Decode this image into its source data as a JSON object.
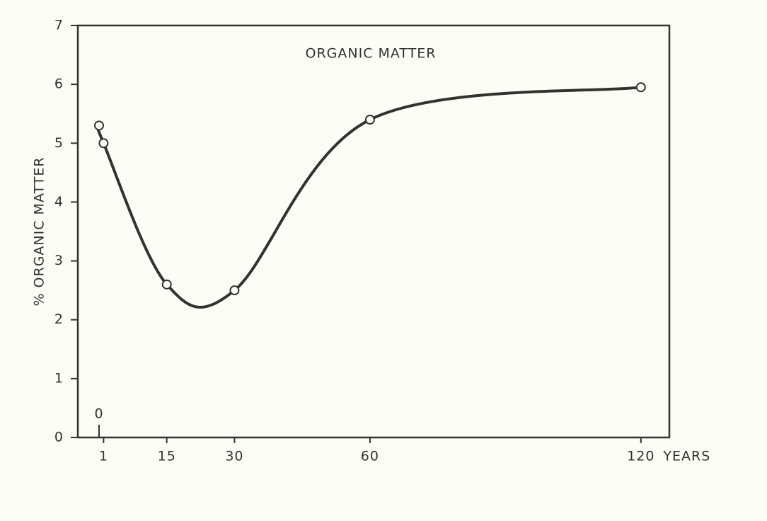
{
  "chart_data": {
    "type": "line",
    "title": "ORGANIC MATTER",
    "ylabel": "% ORGANIC MATTER",
    "xlabel": "YEARS",
    "x": [
      0,
      1,
      15,
      30,
      60,
      120
    ],
    "series": [
      {
        "name": "% ORGANIC MATTER",
        "color": "#2f352c",
        "values": [
          5.3,
          5.0,
          2.6,
          2.5,
          5.4,
          5.95
        ]
      }
    ],
    "xlim": [
      -4.7,
      126.3
    ],
    "xticks": [
      0,
      1,
      15,
      30,
      60,
      120
    ],
    "ylim": [
      0,
      7
    ],
    "yticks": [
      0,
      1,
      2,
      3,
      4,
      5,
      6,
      7
    ],
    "grid": false
  }
}
